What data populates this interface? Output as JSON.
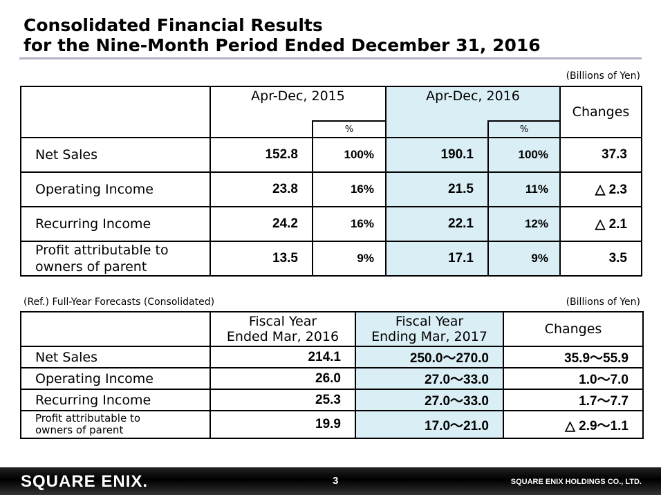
{
  "title": {
    "line1": "Consolidated Financial Results",
    "line2": "for the Nine-Month Period Ended December 31, 2016"
  },
  "table1": {
    "units": "(Billions of Yen)",
    "headers": {
      "col1": "Apr-Dec, 2015",
      "col2": "Apr-Dec, 2016",
      "pct": "%",
      "changes": "Changes"
    },
    "rows": [
      {
        "label": "Net Sales",
        "v2015": "152.8",
        "p2015": "100%",
        "v2016": "190.1",
        "p2016": "100%",
        "change": "37.3"
      },
      {
        "label": "Operating Income",
        "v2015": "23.8",
        "p2015": "16%",
        "v2016": "21.5",
        "p2016": "11%",
        "change": "△ 2.3"
      },
      {
        "label": "Recurring Income",
        "v2015": "24.2",
        "p2015": "16%",
        "v2016": "22.1",
        "p2016": "12%",
        "change": "△ 2.1"
      },
      {
        "label_line1": "Profit attributable to",
        "label_line2": "owners of parent",
        "v2015": "13.5",
        "p2015": "9%",
        "v2016": "17.1",
        "p2016": "9%",
        "change": "3.5"
      }
    ]
  },
  "table2": {
    "caption": "(Ref.) Full-Year Forecasts (Consolidated)",
    "units": "(Billions of Yen)",
    "headers": {
      "col1_line1": "Fiscal Year",
      "col1_line2": "Ended Mar, 2016",
      "col2_line1": "Fiscal Year",
      "col2_line2": "Ending Mar, 2017",
      "changes": "Changes"
    },
    "rows": [
      {
        "label": "Net Sales",
        "fy2016": "214.1",
        "fy2017": "250.0～270.0",
        "change": "35.9～55.9"
      },
      {
        "label": "Operating Income",
        "fy2016": "26.0",
        "fy2017": "27.0～33.0",
        "change": "1.0～7.0"
      },
      {
        "label": "Recurring Income",
        "fy2016": "25.3",
        "fy2017": "27.0～33.0",
        "change": "1.7～7.7"
      },
      {
        "label_line1": "Profit attributable to",
        "label_line2": "owners of parent",
        "fy2016": "19.9",
        "fy2017": "17.0～21.0",
        "change": "△ 2.9～1.1"
      }
    ]
  },
  "footer": {
    "logo": "SQUARE ENIX.",
    "page_number": "3",
    "company": "SQUARE ENIX HOLDINGS CO., LTD."
  }
}
